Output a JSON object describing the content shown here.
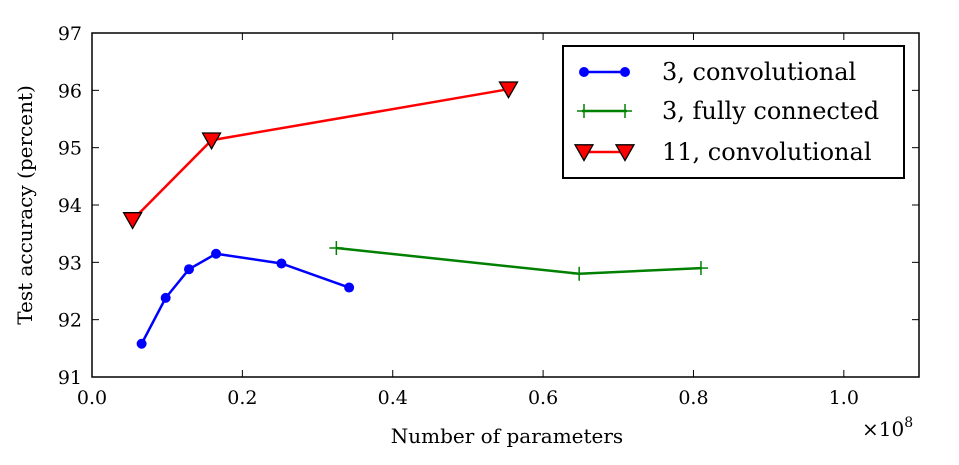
{
  "chart_data": {
    "type": "line",
    "xlabel": "Number of parameters",
    "ylabel": "Test accuracy (percent)",
    "x_scale_label": "×10",
    "x_scale_exponent": "8",
    "xlim": [
      0.0,
      1.1
    ],
    "ylim": [
      91,
      97
    ],
    "xticks": [
      "0.0",
      "0.2",
      "0.4",
      "0.6",
      "0.8",
      "1.0"
    ],
    "yticks": [
      "91",
      "92",
      "93",
      "94",
      "95",
      "96",
      "97"
    ],
    "legend_position": "top-right",
    "grid": false,
    "series": [
      {
        "name": "3, convolutional",
        "color": "#0000ff",
        "marker": "circle",
        "x": [
          0.066,
          0.098,
          0.129,
          0.165,
          0.252,
          0.342
        ],
        "y": [
          91.58,
          92.38,
          92.88,
          93.15,
          92.98,
          92.56
        ]
      },
      {
        "name": "3, fully connected",
        "color": "#008000",
        "marker": "plus",
        "x": [
          0.325,
          0.648,
          0.81
        ],
        "y": [
          93.25,
          92.8,
          92.9
        ]
      },
      {
        "name": "11, convolutional",
        "color": "#ff0000",
        "marker": "triangle-down",
        "x": [
          0.054,
          0.159,
          0.554
        ],
        "y": [
          93.74,
          95.13,
          96.02
        ]
      }
    ]
  }
}
